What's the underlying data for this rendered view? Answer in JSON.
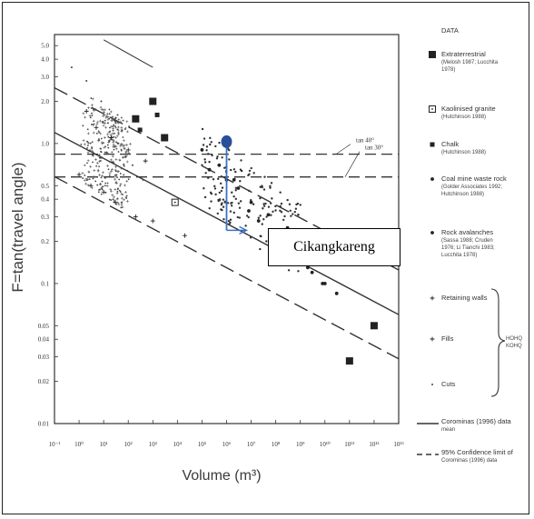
{
  "chart_data": {
    "type": "scatter",
    "xlabel": "Volume (m³)",
    "ylabel": "F=tan(travel angle)",
    "x_scale": "log",
    "y_scale": "log",
    "xlim": [
      0.1,
      10000000000000.0
    ],
    "ylim": [
      0.01,
      6
    ],
    "x_ticks": [
      0.1,
      1,
      10,
      100,
      1000,
      10000,
      100000,
      1000000,
      10000000,
      100000000,
      1000000000,
      10000000000,
      100000000000,
      1000000000000,
      10000000000000
    ],
    "x_tick_labels": [
      "10⁻¹",
      "10⁰",
      "10¹",
      "10²",
      "10³",
      "10⁴",
      "10⁵",
      "10⁶",
      "10⁷",
      "10⁸",
      "10⁹",
      "10¹⁰",
      "10¹¹",
      "10¹²",
      "10¹³"
    ],
    "y_ticks": [
      5,
      4,
      3,
      2,
      1,
      0.5,
      0.4,
      0.3,
      0.2,
      0.1,
      0.05,
      0.04,
      0.03,
      0.02,
      0.01
    ],
    "y_tick_labels": [
      "5.0",
      "4.0",
      "3.0",
      "2.0",
      "1.0",
      "0.5",
      "0.4",
      "0.3",
      "0.2",
      "0.1",
      "0.05",
      "0.04",
      "0.03",
      "0.02",
      "0.01"
    ],
    "reference_lines": [
      {
        "label": "tan 40°",
        "y": 0.839
      },
      {
        "label": "tan 30°",
        "y": 0.577
      }
    ],
    "regression": {
      "mean": [
        [
          0.1,
          1.2
        ],
        [
          10000000000000.0,
          0.06
        ]
      ],
      "upper_95": [
        [
          0.1,
          2.5
        ],
        [
          10000000000000.0,
          0.125
        ]
      ],
      "lower_95": [
        [
          0.1,
          0.58
        ],
        [
          10000000000000.0,
          0.029
        ]
      ],
      "envelope": [
        [
          10,
          5.5
        ],
        [
          1000,
          3.5
        ]
      ]
    },
    "series": [
      {
        "name": "Extraterrestrial",
        "marker": "filled-square",
        "points": [
          [
            200,
            1.5
          ],
          [
            1000,
            2.0
          ],
          [
            3000,
            1.1
          ],
          [
            100000000000,
            0.028
          ],
          [
            1000000000000,
            0.05
          ]
        ]
      },
      {
        "name": "Kaolinised granite",
        "marker": "open-square",
        "points": [
          [
            8000,
            0.38
          ]
        ]
      },
      {
        "name": "Chalk",
        "marker": "small-square",
        "points": [
          [
            300,
            1.25
          ],
          [
            1500,
            1.6
          ]
        ]
      },
      {
        "name": "Coal mine waste rock",
        "marker": "dot",
        "points": [
          [
            200000,
            0.65
          ],
          [
            2000000,
            0.55
          ],
          [
            10000000,
            0.38
          ],
          [
            50000000,
            0.31
          ],
          [
            300000000,
            0.25
          ],
          [
            1000000000,
            0.15
          ],
          [
            3000000000,
            0.12
          ],
          [
            10000000000,
            0.1
          ]
        ]
      },
      {
        "name": "Rock avalanches",
        "marker": "dot",
        "points": [
          [
            100000,
            0.9
          ],
          [
            500000,
            0.7
          ],
          [
            1000000,
            0.55
          ],
          [
            3000000,
            0.48
          ],
          [
            8000000,
            0.33
          ],
          [
            20000000,
            0.28
          ],
          [
            70000000,
            0.22
          ],
          [
            200000000,
            0.19
          ],
          [
            500000000,
            0.17
          ],
          [
            2000000000,
            0.13
          ],
          [
            8000000000,
            0.1
          ],
          [
            30000000000,
            0.085
          ]
        ]
      },
      {
        "name": "Retaining walls",
        "marker": "plus",
        "points": [
          [
            2,
            1.7
          ],
          [
            5,
            1.3
          ],
          [
            20,
            1.1
          ],
          [
            100,
            0.9
          ],
          [
            500,
            0.75
          ]
        ]
      },
      {
        "name": "Fills",
        "marker": "plus",
        "points": [
          [
            1,
            0.6
          ],
          [
            3,
            0.5
          ],
          [
            10,
            0.45
          ],
          [
            30,
            0.38
          ],
          [
            200,
            0.3
          ],
          [
            1000,
            0.28
          ],
          [
            20000,
            0.22
          ]
        ]
      },
      {
        "name": "Cuts",
        "marker": "small-dot",
        "points": [
          [
            0.5,
            3.5
          ],
          [
            2,
            2.8
          ],
          [
            8,
            2.0
          ],
          [
            15,
            1.4
          ],
          [
            40,
            1.0
          ],
          [
            80,
            0.8
          ],
          [
            150,
            0.7
          ],
          [
            400,
            0.55
          ]
        ]
      }
    ]
  },
  "legend": {
    "heading": "DATA",
    "entries": [
      {
        "title": "Extraterrestrial",
        "sub": [
          "(Melosh 1987; Lucchita",
          "1978)"
        ],
        "marker": "filled-square"
      },
      {
        "title": "Kaolinised granite",
        "sub": [
          "(Hutchinson 1988)"
        ],
        "marker": "open-square"
      },
      {
        "title": "Chalk",
        "sub": [
          "(Hutchinson 1988)"
        ],
        "marker": "small-square"
      },
      {
        "title": "Coal mine waste rock",
        "sub": [
          "(Golder Associates 1992;",
          "Hutchinson 1988)"
        ],
        "marker": "dot"
      },
      {
        "title": "Rock avalanches",
        "sub": [
          "(Sassa 1988; Cruden",
          "1976; Li Tianchi 1983;",
          "Lucchita 1978)"
        ],
        "marker": "dot"
      },
      {
        "title": "Retaining walls",
        "sub": [],
        "marker": "plus"
      },
      {
        "title": "Fills",
        "sub": [],
        "marker": "plus"
      },
      {
        "title": "Cuts",
        "sub": [],
        "marker": "small-dot"
      },
      {
        "title": "Corominas (1996) data",
        "sub": [
          "mean"
        ],
        "marker": "solid-line"
      },
      {
        "title": "95% Confidence limit of",
        "sub": [
          "Corominas (1996) data"
        ],
        "marker": "dashed-line"
      }
    ],
    "bracket_label": [
      "HOHQ",
      "KOHQ"
    ]
  },
  "annotation": {
    "site_label": "Cikangkareng",
    "site_volume": 1000000,
    "site_top_F": 1.0,
    "site_bottom_F": 0.24,
    "marker_color": "#3a6fc4",
    "dot_color": "#2a4f9a"
  },
  "colors": {
    "ink": "#333333",
    "frame": "#222222"
  }
}
